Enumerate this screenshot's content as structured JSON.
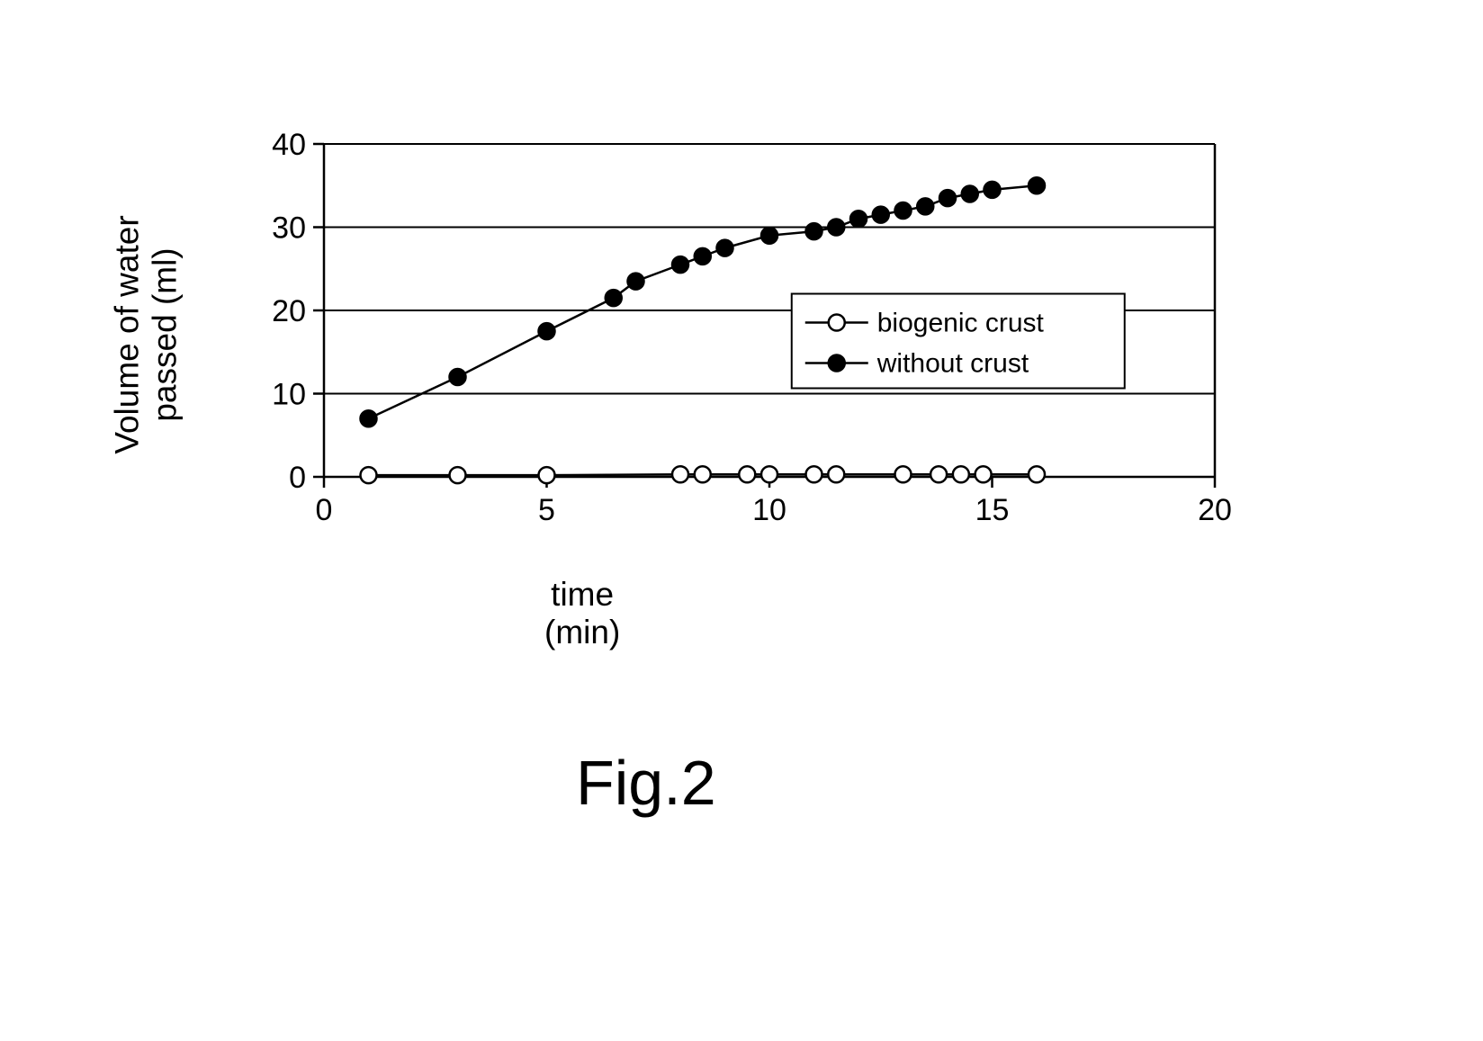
{
  "figure": {
    "caption": "Fig.2",
    "type": "line-scatter",
    "background_color": "#ffffff",
    "axis_color": "#000000",
    "grid_color": "#000000",
    "line_color": "#000000",
    "text_color": "#000000",
    "axis_line_width": 2.5,
    "grid_line_width": 2.0,
    "series_line_width": 2.5,
    "marker_radius": 9,
    "marker_stroke_width": 2.5,
    "x_axis": {
      "label": "time (min)",
      "min": 0,
      "max": 20,
      "ticks": [
        0,
        5,
        10,
        15,
        20
      ],
      "label_fontsize": 37,
      "tick_fontsize": 34
    },
    "y_axis": {
      "label": "Volume of water\npassed (ml)",
      "min": 0,
      "max": 40,
      "ticks": [
        0,
        10,
        20,
        30,
        40
      ],
      "label_fontsize": 37,
      "tick_fontsize": 34
    },
    "legend": {
      "position": "inside-right",
      "fontsize": 30,
      "border_color": "#000000",
      "border_width": 2
    },
    "series": [
      {
        "name": "biogenic crust",
        "marker": "open-circle",
        "marker_fill": "#ffffff",
        "marker_stroke": "#000000",
        "line_color": "#000000",
        "data": [
          {
            "x": 1,
            "y": 0.2
          },
          {
            "x": 3,
            "y": 0.2
          },
          {
            "x": 5,
            "y": 0.2
          },
          {
            "x": 8,
            "y": 0.3
          },
          {
            "x": 8.5,
            "y": 0.3
          },
          {
            "x": 9.5,
            "y": 0.3
          },
          {
            "x": 10,
            "y": 0.3
          },
          {
            "x": 11,
            "y": 0.3
          },
          {
            "x": 11.5,
            "y": 0.3
          },
          {
            "x": 13,
            "y": 0.3
          },
          {
            "x": 13.8,
            "y": 0.3
          },
          {
            "x": 14.3,
            "y": 0.3
          },
          {
            "x": 14.8,
            "y": 0.3
          },
          {
            "x": 16,
            "y": 0.3
          }
        ]
      },
      {
        "name": "without crust",
        "marker": "filled-circle",
        "marker_fill": "#000000",
        "marker_stroke": "#000000",
        "line_color": "#000000",
        "data": [
          {
            "x": 1,
            "y": 7
          },
          {
            "x": 3,
            "y": 12
          },
          {
            "x": 5,
            "y": 17.5
          },
          {
            "x": 6.5,
            "y": 21.5
          },
          {
            "x": 7,
            "y": 23.5
          },
          {
            "x": 8,
            "y": 25.5
          },
          {
            "x": 8.5,
            "y": 26.5
          },
          {
            "x": 9,
            "y": 27.5
          },
          {
            "x": 10,
            "y": 29
          },
          {
            "x": 11,
            "y": 29.5
          },
          {
            "x": 11.5,
            "y": 30
          },
          {
            "x": 12,
            "y": 31
          },
          {
            "x": 12.5,
            "y": 31.5
          },
          {
            "x": 13,
            "y": 32
          },
          {
            "x": 13.5,
            "y": 32.5
          },
          {
            "x": 14,
            "y": 33.5
          },
          {
            "x": 14.5,
            "y": 34
          },
          {
            "x": 15,
            "y": 34.5
          },
          {
            "x": 16,
            "y": 35
          }
        ]
      }
    ]
  }
}
